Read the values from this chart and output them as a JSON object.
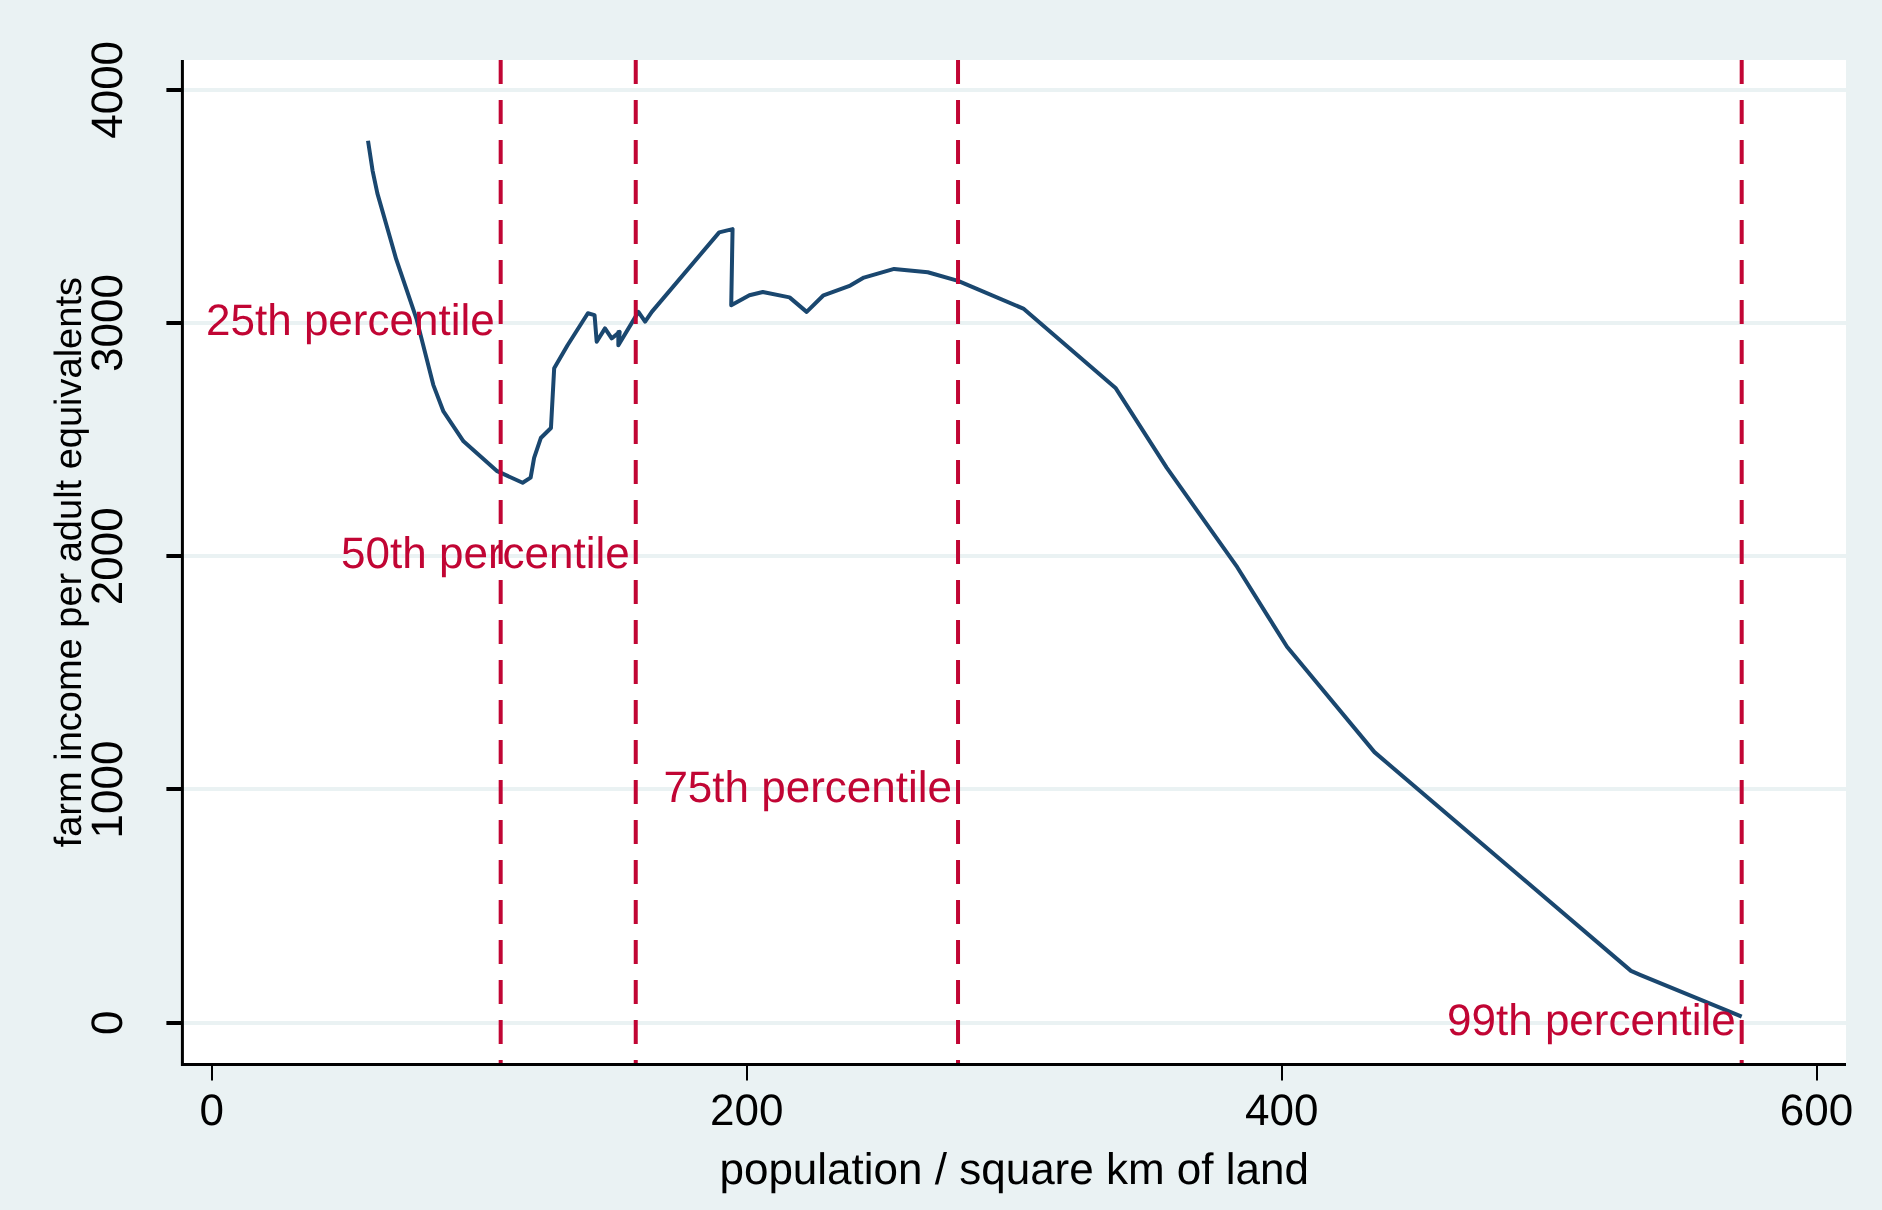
{
  "chart_data": {
    "type": "line",
    "xlabel": "population / square km of land",
    "ylabel": "farm income per adult equivalents",
    "x": [
      58.4,
      60.1,
      61.9,
      67,
      68.9,
      76.5,
      82.8,
      86.6,
      94.1,
      106.7,
      116.2,
      119.2,
      120.5,
      123,
      126.8,
      128,
      133,
      140.6,
      143.1,
      143.9,
      147,
      149.5,
      152.5,
      152,
      159.5,
      162,
      164.5,
      189.7,
      194.7,
      194.2,
      201,
      206,
      216,
      222.4,
      228.7,
      238.7,
      243.8,
      255.1,
      267.7,
      279,
      303.4,
      338,
      357,
      383.4,
      395,
      402,
      434.7,
      530.6,
      534,
      572
    ],
    "series": [
      {
        "color": "#1a476f",
        "values": [
          3782,
          3654,
          3556,
          3352,
          3275,
          3019,
          2735,
          2621,
          2493,
          2365,
          2315,
          2337,
          2422,
          2507,
          2550,
          2806,
          2905,
          3042,
          3034,
          2920,
          2977,
          2934,
          2962,
          2905,
          3048,
          3006,
          3048,
          3389,
          3403,
          3076,
          3119,
          3133,
          3110,
          3048,
          3119,
          3161,
          3195,
          3232,
          3218,
          3181,
          3062,
          2720,
          2380,
          1953,
          1740,
          1612,
          1160,
          222,
          205,
          26
        ]
      }
    ],
    "xlim": [
      -11,
      611
    ],
    "ylim": [
      -179,
      4128
    ],
    "xticks": [
      0,
      200,
      400,
      600
    ],
    "yticks": [
      0,
      1000,
      2000,
      3000,
      4000
    ],
    "grid": "y",
    "legend": false,
    "marker": "none",
    "line_style": "solid",
    "ref_lines": [
      {
        "axis": "x",
        "value": 108,
        "color": "#c10534",
        "line_style": "dashed"
      },
      {
        "axis": "x",
        "value": 158.5,
        "color": "#c10534",
        "line_style": "dashed"
      },
      {
        "axis": "x",
        "value": 279,
        "color": "#c10534",
        "line_style": "dashed"
      },
      {
        "axis": "x",
        "value": 572,
        "color": "#c10534",
        "line_style": "dashed"
      }
    ],
    "annotations": [
      {
        "text": "25th percentile",
        "x": 108,
        "y": 3000
      },
      {
        "text": "50th percentile",
        "x": 158.5,
        "y": 2000
      },
      {
        "text": "75th percentile",
        "x": 279,
        "y": 1000
      },
      {
        "text": "99th percentile",
        "x": 572,
        "y": 0
      }
    ]
  }
}
